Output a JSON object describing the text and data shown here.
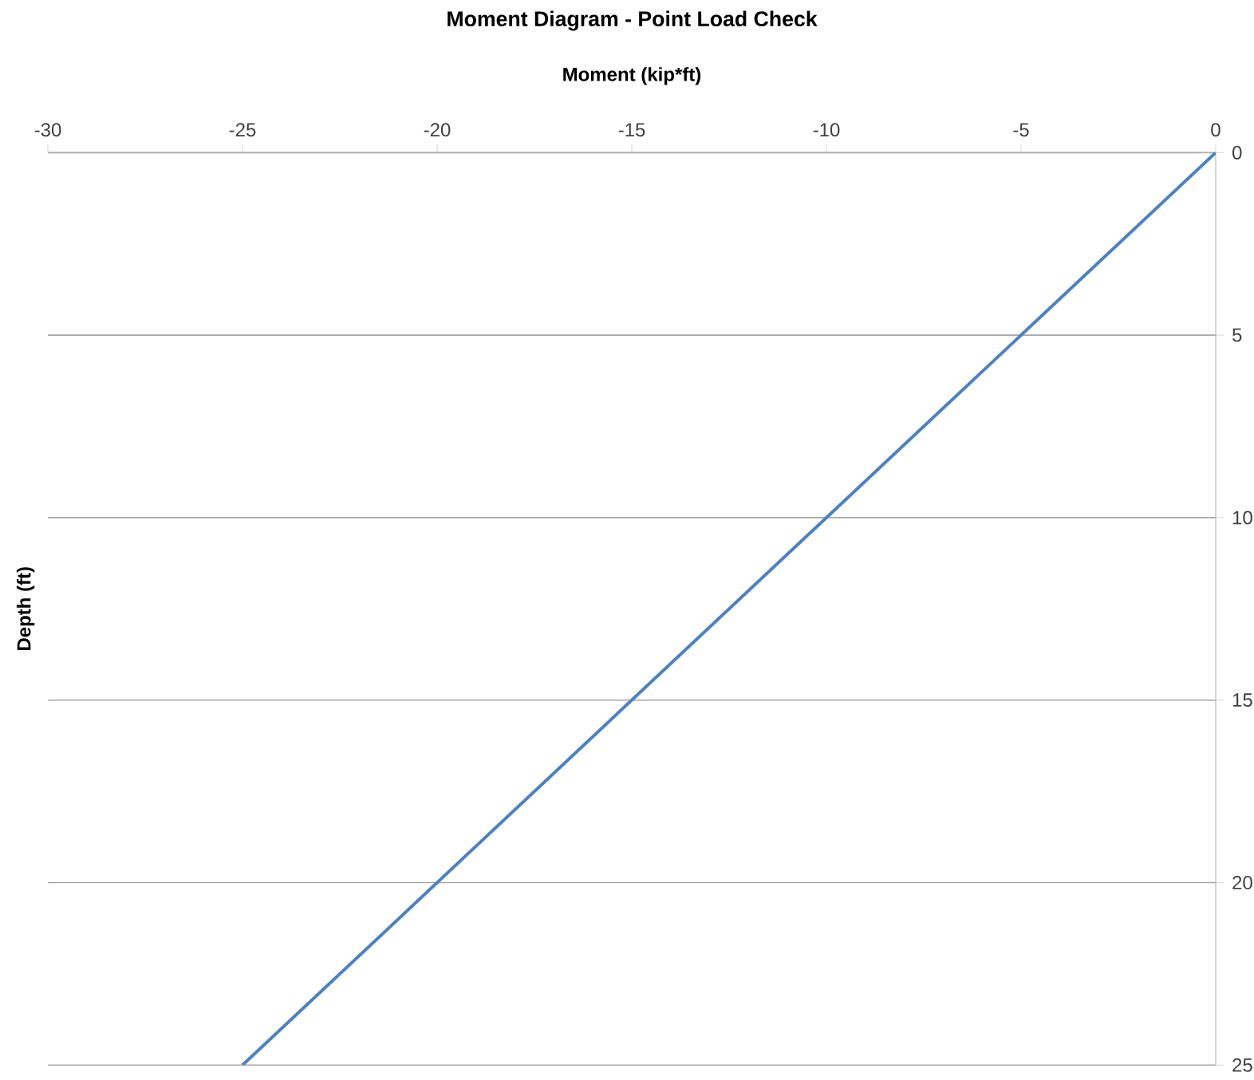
{
  "chart_data": {
    "type": "line",
    "title": "Moment Diagram - Point Load Check",
    "xlabel": "Moment (kip*ft)",
    "ylabel": "Depth (ft)",
    "x": [
      0,
      -25
    ],
    "values": [
      0,
      25
    ],
    "color": "#4f81bd",
    "line_style": "solid",
    "marker": "none",
    "xlim": [
      -30,
      0
    ],
    "xticks": [
      -30,
      -25,
      -20,
      -15,
      -10,
      -5,
      0
    ],
    "ylim": [
      25,
      0
    ],
    "yticks": [
      0,
      5,
      10,
      15,
      20,
      25
    ],
    "grid": "y"
  }
}
